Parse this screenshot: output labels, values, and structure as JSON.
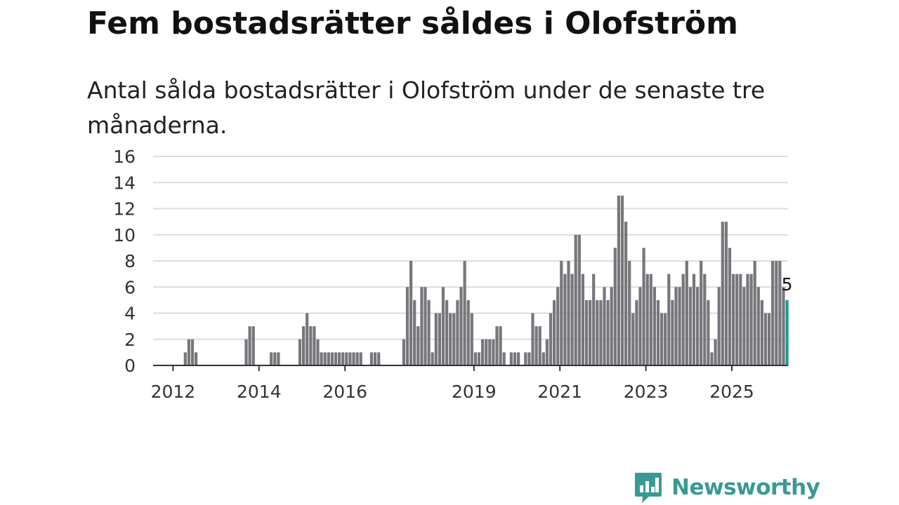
{
  "title": "Fem bostadsrätter såldes i Olofström",
  "subtitle": "Antal sålda bostadsrätter i Olofström under de senaste tre månaderna.",
  "brand": {
    "name": "Newsworthy",
    "logo_icon": "bar-chart-speech-bubble-icon",
    "color": "#3a9a93"
  },
  "chart_data": {
    "type": "bar",
    "title": "",
    "xlabel": "",
    "ylabel": "",
    "ylim": [
      0,
      16
    ],
    "yticks": [
      0,
      2,
      4,
      6,
      8,
      10,
      12,
      14,
      16
    ],
    "xticks": [
      "2012",
      "2014",
      "2016",
      "2019",
      "2021",
      "2023",
      "2025"
    ],
    "start_month": "2011-09",
    "grid": true,
    "bar_color": "#77767b",
    "highlight_color": "#1a9e96",
    "highlight_label": "5",
    "values": [
      0,
      0,
      0,
      0,
      0,
      0,
      0,
      1,
      2,
      2,
      1,
      0,
      0,
      0,
      0,
      0,
      0,
      0,
      0,
      0,
      0,
      0,
      0,
      0,
      2,
      3,
      3,
      0,
      0,
      0,
      0,
      1,
      1,
      1,
      0,
      0,
      0,
      0,
      0,
      2,
      3,
      4,
      3,
      3,
      2,
      1,
      1,
      1,
      1,
      1,
      1,
      1,
      1,
      1,
      1,
      1,
      1,
      0,
      0,
      1,
      1,
      1,
      0,
      0,
      0,
      0,
      0,
      0,
      2,
      6,
      8,
      5,
      3,
      6,
      6,
      5,
      1,
      4,
      4,
      6,
      5,
      4,
      4,
      5,
      6,
      8,
      5,
      4,
      1,
      1,
      2,
      2,
      2,
      2,
      3,
      3,
      1,
      0,
      1,
      1,
      1,
      0,
      1,
      1,
      4,
      3,
      3,
      1,
      2,
      4,
      5,
      6,
      8,
      7,
      8,
      7,
      10,
      10,
      7,
      5,
      5,
      7,
      5,
      5,
      6,
      5,
      6,
      9,
      13,
      13,
      11,
      8,
      4,
      5,
      6,
      9,
      7,
      7,
      6,
      5,
      4,
      4,
      7,
      5,
      6,
      6,
      7,
      8,
      6,
      7,
      6,
      8,
      7,
      5,
      1,
      2,
      6,
      11,
      11,
      9,
      7,
      7,
      7,
      6,
      7,
      7,
      8,
      6,
      5,
      4,
      4,
      8,
      8,
      8,
      6,
      5
    ]
  }
}
